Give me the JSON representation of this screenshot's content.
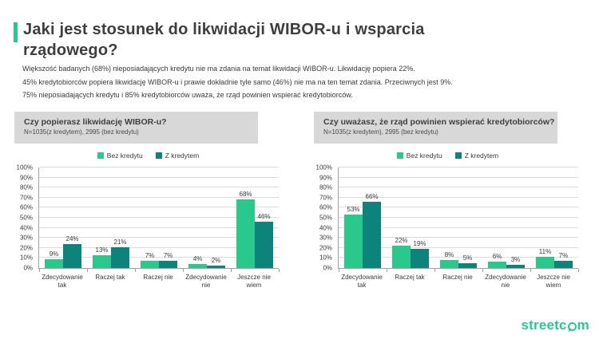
{
  "page": {
    "title": "Jaki jest stosunek do likwidacji WIBOR-u i wsparcia rządowego?"
  },
  "intro": {
    "line1": "Większość badanych (68%) nieposiadających kredytu nie ma zdania na temat likwidacji WIBOR-u. Likwidację popiera 22%.",
    "line2": "45% kredytobiorców popiera likwidację WIBOR-u i prawie dokładnie tyle samo (46%) nie ma na ten temat zdania. Przeciwnych jest 9%.",
    "line3": "75% nieposiadających kredytu i 85% kredytobiorców uważa, że rząd powinien wspierać kredytobiorców."
  },
  "colors": {
    "accent_green": "#2BC88E",
    "series_bez_kredytu": "#2BC88E",
    "series_z_kredytem": "#0E837C",
    "question_box_bg": "#D8D8D8",
    "title_text": "#3E3E3E",
    "logo_green": "#2BC88E"
  },
  "chart_data": [
    {
      "type": "bar",
      "title": "Czy popierasz likwidację WIBOR-u?",
      "subtitle": "N=1035(z kredytem), 2995 (bez kredytu)",
      "categories": [
        "Zdecydowanie tak",
        "Raczej tak",
        "Raczej nie",
        "Zdecydowanie nie",
        "Jeszcze nie wiem"
      ],
      "series": [
        {
          "name": "Bez kredytu",
          "color": "#2BC88E",
          "values": [
            9,
            13,
            7,
            4,
            68
          ]
        },
        {
          "name": "Z kredytem",
          "color": "#0E837C",
          "values": [
            24,
            21,
            7,
            2,
            46
          ]
        }
      ],
      "xlabel": "",
      "ylabel": "",
      "ylim": [
        0,
        100
      ],
      "ytick_step": 10,
      "ytick_suffix": "%",
      "value_label_suffix": "%",
      "grid": true,
      "legend_position": "top"
    },
    {
      "type": "bar",
      "title": "Czy uważasz, że rząd powinien wspierać kredytobiorców?",
      "subtitle": "N=1035(z kredytem), 2995 (bez kredytu)",
      "categories": [
        "Zdecydowanie tak",
        "Raczej tak",
        "Raczej nie",
        "Zdecydowanie nie",
        "Jeszcze nie wiem"
      ],
      "series": [
        {
          "name": "Bez kredytu",
          "color": "#2BC88E",
          "values": [
            53,
            22,
            8,
            6,
            11
          ]
        },
        {
          "name": "Z kredytem",
          "color": "#0E837C",
          "values": [
            66,
            19,
            5,
            3,
            7
          ]
        }
      ],
      "xlabel": "",
      "ylabel": "",
      "ylim": [
        0,
        100
      ],
      "ytick_step": 10,
      "ytick_suffix": "%",
      "value_label_suffix": "%",
      "grid": true,
      "legend_position": "top"
    }
  ],
  "footer": {
    "logo_text": "streetcom",
    "logo_prefix": "streetc",
    "logo_suffix": "m"
  }
}
